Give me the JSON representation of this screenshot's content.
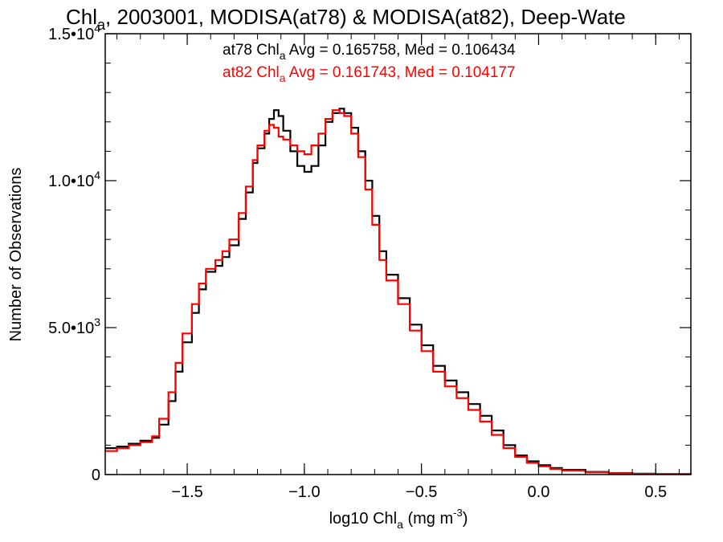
{
  "chart_data": {
    "type": "line",
    "step": true,
    "title_parts": {
      "pre": "Chl",
      "sub": "a",
      "post": ", 2003001, MODISA(at78) & MODISA(at82), Deep-Wate"
    },
    "xlabel_parts": {
      "pre": "log10 Chl",
      "sub": "a",
      "mid": " (mg m",
      "sup": "-3",
      "post": ")"
    },
    "ylabel": "Number of Observations",
    "xlim": [
      -1.85,
      0.65
    ],
    "ylim": [
      0,
      15000
    ],
    "x_ticks": [
      {
        "value": -1.5,
        "label": "−1.5"
      },
      {
        "value": -1.0,
        "label": "−1.0"
      },
      {
        "value": -0.5,
        "label": "−0.5"
      },
      {
        "value": 0.0,
        "label": "0.0"
      },
      {
        "value": 0.5,
        "label": "0.5"
      }
    ],
    "y_ticks": [
      {
        "value": 0,
        "mant": "0",
        "exp": ""
      },
      {
        "value": 5000,
        "mant": "5.0•10",
        "exp": "3"
      },
      {
        "value": 10000,
        "mant": "1.0•10",
        "exp": "4"
      },
      {
        "value": 15000,
        "mant": "1.5•10",
        "exp": "4"
      }
    ],
    "x_minor_step": 0.1,
    "y_minor_step": 1000,
    "annotations": [
      {
        "pre": "at78 Chl",
        "sub": "a",
        "post": " Avg = 0.165758, Med = 0.106434",
        "color": "#000000"
      },
      {
        "pre": "at82 Chl",
        "sub": "a",
        "post": " Avg = 0.161743, Med = 0.104177",
        "color": "#ff0000"
      }
    ],
    "series": [
      {
        "color": "#000000",
        "points": [
          [
            -1.85,
            900
          ],
          [
            -1.8,
            950
          ],
          [
            -1.75,
            1050
          ],
          [
            -1.7,
            1150
          ],
          [
            -1.65,
            1250
          ],
          [
            -1.62,
            1700
          ],
          [
            -1.58,
            2500
          ],
          [
            -1.55,
            3500
          ],
          [
            -1.52,
            4500
          ],
          [
            -1.48,
            5500
          ],
          [
            -1.45,
            6300
          ],
          [
            -1.42,
            6900
          ],
          [
            -1.38,
            7100
          ],
          [
            -1.35,
            7400
          ],
          [
            -1.32,
            7800
          ],
          [
            -1.28,
            8700
          ],
          [
            -1.25,
            9600
          ],
          [
            -1.22,
            10600
          ],
          [
            -1.2,
            11100
          ],
          [
            -1.17,
            11600
          ],
          [
            -1.15,
            12100
          ],
          [
            -1.13,
            12400
          ],
          [
            -1.11,
            12200
          ],
          [
            -1.09,
            11700
          ],
          [
            -1.06,
            11000
          ],
          [
            -1.03,
            10500
          ],
          [
            -1.0,
            10300
          ],
          [
            -0.97,
            10500
          ],
          [
            -0.94,
            11200
          ],
          [
            -0.91,
            12000
          ],
          [
            -0.88,
            12300
          ],
          [
            -0.85,
            12450
          ],
          [
            -0.83,
            12300
          ],
          [
            -0.8,
            11800
          ],
          [
            -0.77,
            11000
          ],
          [
            -0.74,
            10000
          ],
          [
            -0.71,
            8800
          ],
          [
            -0.68,
            7600
          ],
          [
            -0.65,
            6800
          ],
          [
            -0.6,
            6000
          ],
          [
            -0.55,
            5100
          ],
          [
            -0.5,
            4400
          ],
          [
            -0.45,
            3700
          ],
          [
            -0.4,
            3200
          ],
          [
            -0.35,
            2800
          ],
          [
            -0.3,
            2400
          ],
          [
            -0.25,
            2000
          ],
          [
            -0.2,
            1500
          ],
          [
            -0.15,
            1000
          ],
          [
            -0.1,
            650
          ],
          [
            -0.05,
            450
          ],
          [
            0.0,
            320
          ],
          [
            0.05,
            220
          ],
          [
            0.1,
            160
          ],
          [
            0.2,
            90
          ],
          [
            0.3,
            50
          ],
          [
            0.4,
            30
          ],
          [
            0.5,
            20
          ],
          [
            0.65,
            10
          ]
        ]
      },
      {
        "color": "#ff0000",
        "points": [
          [
            -1.85,
            800
          ],
          [
            -1.8,
            900
          ],
          [
            -1.75,
            1000
          ],
          [
            -1.7,
            1100
          ],
          [
            -1.65,
            1300
          ],
          [
            -1.62,
            1900
          ],
          [
            -1.58,
            2800
          ],
          [
            -1.55,
            3800
          ],
          [
            -1.52,
            4800
          ],
          [
            -1.48,
            5800
          ],
          [
            -1.45,
            6500
          ],
          [
            -1.42,
            7000
          ],
          [
            -1.38,
            7300
          ],
          [
            -1.35,
            7600
          ],
          [
            -1.32,
            8000
          ],
          [
            -1.28,
            8900
          ],
          [
            -1.25,
            9800
          ],
          [
            -1.22,
            10700
          ],
          [
            -1.2,
            11200
          ],
          [
            -1.17,
            11700
          ],
          [
            -1.15,
            11900
          ],
          [
            -1.13,
            11800
          ],
          [
            -1.11,
            11500
          ],
          [
            -1.09,
            11400
          ],
          [
            -1.06,
            11200
          ],
          [
            -1.03,
            11000
          ],
          [
            -1.0,
            10900
          ],
          [
            -0.97,
            11200
          ],
          [
            -0.94,
            11600
          ],
          [
            -0.91,
            12100
          ],
          [
            -0.88,
            12400
          ],
          [
            -0.85,
            12300
          ],
          [
            -0.83,
            12200
          ],
          [
            -0.8,
            11600
          ],
          [
            -0.77,
            10800
          ],
          [
            -0.74,
            9700
          ],
          [
            -0.71,
            8500
          ],
          [
            -0.68,
            7300
          ],
          [
            -0.65,
            6600
          ],
          [
            -0.6,
            5800
          ],
          [
            -0.55,
            4900
          ],
          [
            -0.5,
            4200
          ],
          [
            -0.45,
            3500
          ],
          [
            -0.4,
            3000
          ],
          [
            -0.35,
            2600
          ],
          [
            -0.3,
            2200
          ],
          [
            -0.25,
            1800
          ],
          [
            -0.2,
            1350
          ],
          [
            -0.15,
            900
          ],
          [
            -0.1,
            600
          ],
          [
            -0.05,
            400
          ],
          [
            0.0,
            280
          ],
          [
            0.05,
            190
          ],
          [
            0.1,
            140
          ],
          [
            0.2,
            80
          ],
          [
            0.3,
            45
          ],
          [
            0.4,
            25
          ],
          [
            0.5,
            15
          ],
          [
            0.65,
            8
          ]
        ]
      }
    ]
  }
}
